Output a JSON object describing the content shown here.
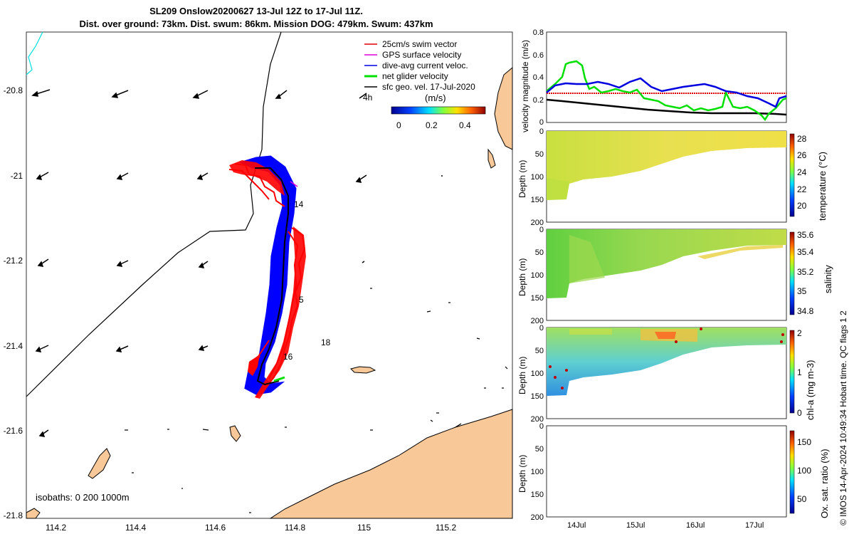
{
  "title": {
    "line1": "SL209 Onslow20200627 13-Jul 12Z to 17-Jul 11Z.",
    "line2": "Dist. over ground: 73km. Dist. swum: 86km. Mission DOG: 479km. Swum: 437km"
  },
  "map": {
    "x_ticks": [
      "114.2",
      "114.4",
      "114.6",
      "114.8",
      "115",
      "115.2"
    ],
    "y_ticks": [
      "-20.8",
      "-21",
      "-21.2",
      "-21.4",
      "-21.6",
      "-21.8"
    ],
    "legend": [
      {
        "label": "25cm/s swim vector",
        "color": "#e00000"
      },
      {
        "label": "GPS surface velocity",
        "color": "#e000e0"
      },
      {
        "label": "dive-avg current veloc.",
        "color": "#0000e0"
      },
      {
        "label": "net glider velocity",
        "color": "#00e000"
      },
      {
        "label": "sfc geo. vel. 17-Jul-2020",
        "color": "#000000"
      }
    ],
    "colorbar": {
      "unit": "(m/s)",
      "ticks": [
        "0",
        "0.2",
        "0.4"
      ]
    },
    "scale_label": "4h",
    "day_labels": [
      "14",
      "5",
      "16",
      "18"
    ],
    "isobaths_label": "isobaths: 0   200  1000m",
    "colors": {
      "land": "#f9c898",
      "track": "#0000ff",
      "swim": "#ff0000",
      "coast": "#000000"
    }
  },
  "velocity_panel": {
    "ylabel": "velocity magnitude (m/s)",
    "y_ticks": [
      "0",
      "0.2",
      "0.4",
      "0.6",
      "0.8"
    ]
  },
  "profiles": [
    {
      "name": "temperature",
      "cb_label": "temperature (°C)",
      "cb_ticks": [
        "28",
        "26",
        "24",
        "22",
        "20"
      ],
      "depth_ticks": [
        "0",
        "50",
        "100",
        "150",
        "200"
      ],
      "ylabel": "Depth (m)"
    },
    {
      "name": "salinity",
      "cb_label": "salinity",
      "cb_ticks": [
        "35.6",
        "35.4",
        "35.2",
        "35",
        "34.8"
      ],
      "depth_ticks": [
        "0",
        "50",
        "100",
        "150",
        "200"
      ],
      "ylabel": "Depth (m)"
    },
    {
      "name": "chl-a",
      "cb_label": "chl-a (mg m-3)",
      "cb_ticks": [
        "2",
        "1",
        "0"
      ],
      "depth_ticks": [
        "0",
        "50",
        "100",
        "150",
        "200"
      ],
      "ylabel": "Depth (m)"
    },
    {
      "name": "oxygen",
      "cb_label": "Ox. sat. ratio (%)",
      "cb_ticks": [
        "150",
        "100",
        "50"
      ],
      "depth_ticks": [
        "0",
        "50",
        "100",
        "150",
        "200"
      ],
      "ylabel": "Depth (m)"
    }
  ],
  "time_ticks": [
    "14Jul",
    "15Jul",
    "16Jul",
    "17Jul"
  ],
  "credit": "© IMOS 14-Apr-2024 10:49:34 Hobart time. QC flags 1  2"
}
